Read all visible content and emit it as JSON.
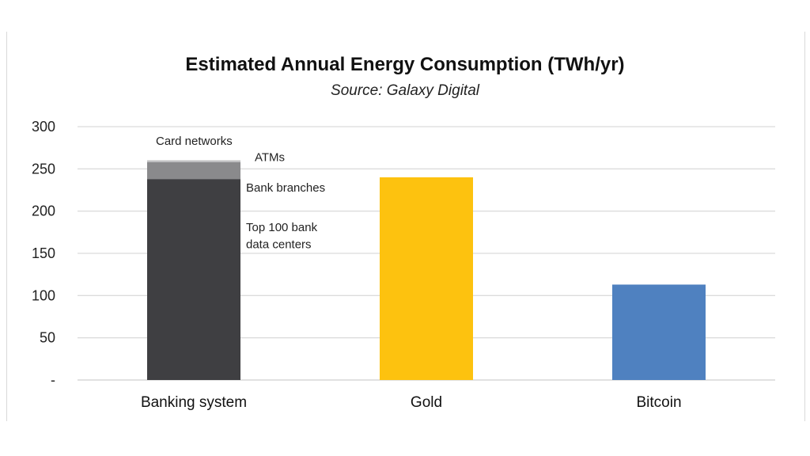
{
  "chart_data": {
    "type": "bar",
    "stacked": true,
    "title": "Estimated Annual Energy Consumption (TWh/yr)",
    "subtitle": "Source: Galaxy Digital",
    "xlabel": "",
    "ylabel": "",
    "ylim": [
      0,
      300
    ],
    "yticks": [
      {
        "value": 0,
        "label": "-"
      },
      {
        "value": 50,
        "label": "50"
      },
      {
        "value": 100,
        "label": "100"
      },
      {
        "value": 150,
        "label": "150"
      },
      {
        "value": 200,
        "label": "200"
      },
      {
        "value": 250,
        "label": "250"
      },
      {
        "value": 300,
        "label": "300"
      }
    ],
    "grid": true,
    "categories": [
      "Banking system",
      "Gold",
      "Bitcoin"
    ],
    "series": [
      {
        "name": "Top 100 bank data centers",
        "color": "#3f3f42",
        "values": [
          238,
          240,
          113
        ]
      },
      {
        "name": "Bank branches",
        "color": "#8a8a8c",
        "values": [
          20,
          0,
          0
        ]
      },
      {
        "name": "ATMs",
        "color": "#b9b9bb",
        "values": [
          2,
          0,
          0
        ]
      },
      {
        "name": "Card networks",
        "color": "#d4d4d4",
        "values": [
          0.4,
          0,
          0
        ]
      }
    ],
    "bar_colors": [
      "#3f3f42",
      "#fdc20f",
      "#4f81c0"
    ],
    "annotations": [
      {
        "text": "Card networks",
        "category": "Banking system",
        "y": 283
      },
      {
        "text": "ATMs",
        "category": "Banking system",
        "y": 264
      },
      {
        "text": "Bank branches",
        "category": "Banking system",
        "y": 228
      },
      {
        "text": "Top 100 bank",
        "category": "Banking system",
        "y": 181
      },
      {
        "text": "data centers",
        "category": "Banking system",
        "y": 161
      }
    ]
  }
}
